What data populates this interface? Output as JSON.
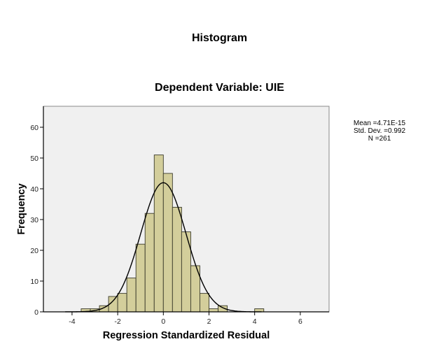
{
  "chart_data": {
    "type": "bar",
    "subtype": "histogram",
    "title": "Histogram",
    "subtitle": "Dependent Variable: UIE",
    "xlabel": "Regression Standardized Residual",
    "ylabel": "Frequency",
    "xlim": [
      -5.0,
      7.2
    ],
    "ylim": [
      0,
      67
    ],
    "x_ticks": [
      -4,
      -2,
      0,
      2,
      4,
      6
    ],
    "y_ticks": [
      0,
      10,
      20,
      30,
      40,
      50,
      60
    ],
    "bin_width": 0.4,
    "bins": [
      {
        "start": -3.6,
        "end": -3.2,
        "count": 1
      },
      {
        "start": -3.2,
        "end": -2.8,
        "count": 1
      },
      {
        "start": -2.8,
        "end": -2.4,
        "count": 2
      },
      {
        "start": -2.4,
        "end": -2.0,
        "count": 5
      },
      {
        "start": -2.0,
        "end": -1.6,
        "count": 6
      },
      {
        "start": -1.6,
        "end": -1.2,
        "count": 11
      },
      {
        "start": -1.2,
        "end": -0.8,
        "count": 22
      },
      {
        "start": -0.8,
        "end": -0.4,
        "count": 32
      },
      {
        "start": -0.4,
        "end": 0.0,
        "count": 51
      },
      {
        "start": 0.0,
        "end": 0.4,
        "count": 45
      },
      {
        "start": 0.4,
        "end": 0.8,
        "count": 34
      },
      {
        "start": 0.8,
        "end": 1.2,
        "count": 26
      },
      {
        "start": 1.2,
        "end": 1.6,
        "count": 15
      },
      {
        "start": 1.6,
        "end": 2.0,
        "count": 6
      },
      {
        "start": 2.0,
        "end": 2.4,
        "count": 1
      },
      {
        "start": 2.4,
        "end": 2.8,
        "count": 2
      },
      {
        "start": 4.0,
        "end": 4.4,
        "count": 1
      }
    ],
    "normal_curve": {
      "mean": 0.0,
      "sd": 0.992,
      "n": 261,
      "shown": true
    },
    "legend": {
      "mean": "Mean =4.71E-15",
      "std_dev": "Std. Dev. =0.992",
      "n": "N =261"
    },
    "grid": false,
    "colors": {
      "bar_fill": "#d3ce9b",
      "bar_stroke": "#3a3a2a",
      "plot_background": "#f0f0f0",
      "curve": "#000000"
    }
  }
}
